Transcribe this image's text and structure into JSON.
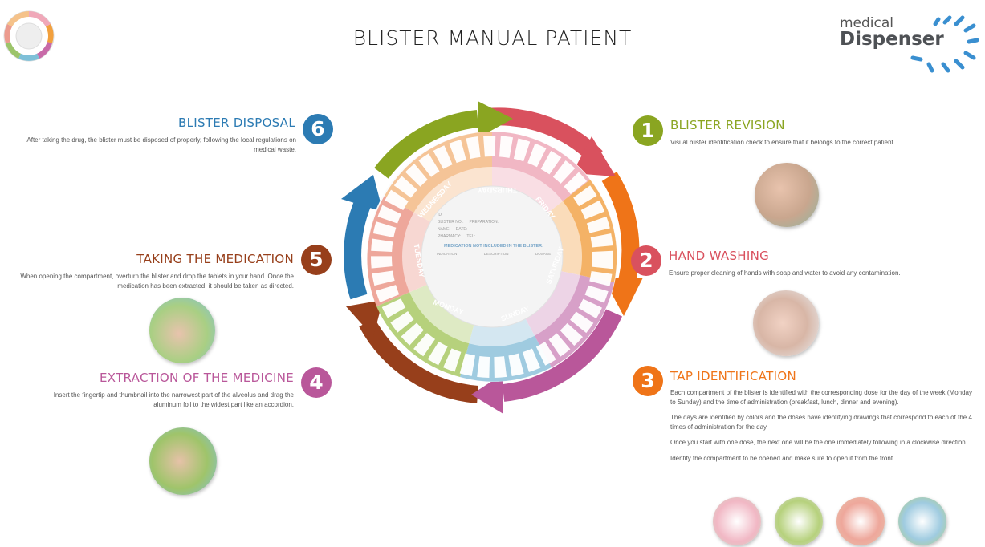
{
  "page": {
    "title": "BLISTER MANUAL PATIENT"
  },
  "brand": {
    "line1": "medical",
    "line2": "Dispenser"
  },
  "colors": {
    "step1": "#8aa521",
    "step2": "#d9515e",
    "step3": "#ef7418",
    "step4": "#b9579a",
    "step5": "#973f1b",
    "step6": "#2c7bb3"
  },
  "steps": [
    {
      "number": "1",
      "heading": "BLISTER REVISION",
      "text": "Visual blister identification check to ensure that it belongs to the correct patient."
    },
    {
      "number": "2",
      "heading": "HAND WASHING",
      "text": "Ensure proper cleaning of hands with soap and water to avoid any contamination."
    },
    {
      "number": "3",
      "heading": "TAP IDENTIFICATION",
      "paragraphs": [
        "Each compartment of the blister is identified with the corresponding dose for the day of the week (Monday to Sunday) and the time of administration (breakfast, lunch, dinner and evening).",
        "The days are identified by colors and the doses have identifying drawings that correspond to each of the 4 times of administration for the day.",
        "Once you start with one dose, the next one will be the one immediately following in a clockwise direction.",
        "Identify the compartment to be opened and make sure to open it from the front."
      ]
    },
    {
      "number": "4",
      "heading": "EXTRACTION OF THE MEDICINE",
      "text": "Insert the fingertip and thumbnail into the narrowest part of the alveolus and drag the aluminum foil to the widest part like an accordion."
    },
    {
      "number": "5",
      "heading": "TAKING THE MEDICATION",
      "text": "When opening the compartment, overturn the blister and drop the tablets in your hand. Once the medication has been extracted, it should be taken as directed."
    },
    {
      "number": "6",
      "heading": "BLISTER DISPOSAL",
      "text": "After taking the drug, the blister must be disposed of properly, following the local regulations on medical waste."
    }
  ],
  "wheel": {
    "days": [
      "MONDAY",
      "TUESDAY",
      "WEDNESDAY",
      "THURSDAY",
      "FRIDAY",
      "SATURDAY",
      "SUNDAY"
    ],
    "center_title": "MEDICATION NOT INCLUDED IN THE BLISTER:",
    "fields": [
      "ID:",
      "BLISTER NO.:",
      "PREPARATION:",
      "NAME:",
      "DATE:",
      "PHARMACY:",
      "TEL:"
    ],
    "columns": [
      "INDICATION",
      "DESCRIPTION",
      "DOSAGE"
    ]
  }
}
